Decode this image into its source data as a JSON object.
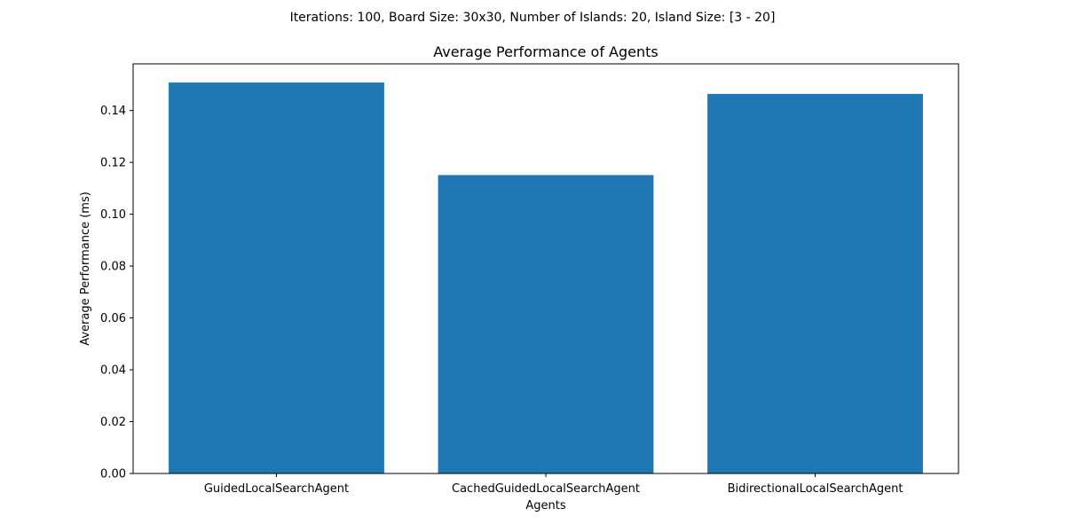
{
  "chart_data": {
    "type": "bar",
    "suptitle": "Iterations: 100, Board Size: 30x30, Number of Islands: 20, Island Size: [3 - 20]",
    "title": "Average Performance of Agents",
    "xlabel": "Agents",
    "ylabel": "Average Performance (ms)",
    "categories": [
      "GuidedLocalSearchAgent",
      "CachedGuidedLocalSearchAgent",
      "BidirectionalLocalSearchAgent"
    ],
    "values": [
      0.1508,
      0.1151,
      0.1464
    ],
    "ylim": [
      0,
      0.158
    ],
    "yticks": [
      0.0,
      0.02,
      0.04,
      0.06,
      0.08,
      0.1,
      0.12,
      0.14
    ],
    "ytick_labels": [
      "0.00",
      "0.02",
      "0.04",
      "0.06",
      "0.08",
      "0.10",
      "0.12",
      "0.14"
    ],
    "grid": false,
    "bar_color": "#1f77b4"
  }
}
